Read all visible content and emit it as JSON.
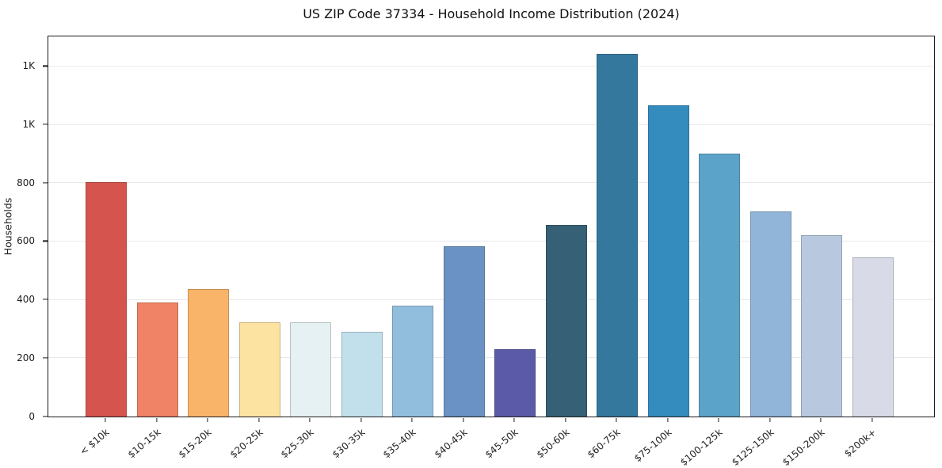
{
  "figure": {
    "title": "US ZIP Code 37334 - Household Income Distribution (2024)"
  },
  "chart_data": {
    "type": "bar",
    "title": "US ZIP Code 37334 - Household Income Distribution (2024)",
    "xlabel": "",
    "ylabel": "Households",
    "categories": [
      "< $10k",
      "$10-15k",
      "$15-20k",
      "$20-25k",
      "$25-30k",
      "$30-35k",
      "$35-40k",
      "$40-45k",
      "$45-50k",
      "$50-60k",
      "$60-75k",
      "$75-100k",
      "$100-125k",
      "$125-150k",
      "$150-200k",
      "$200k+"
    ],
    "values": [
      803,
      390,
      438,
      324,
      323,
      291,
      380,
      583,
      231,
      658,
      1243,
      1066,
      900,
      703,
      622,
      546
    ],
    "bar_colors": [
      "#d5544e",
      "#f08365",
      "#f9b469",
      "#fce3a2",
      "#e6f1f3",
      "#c1e0ec",
      "#92bedd",
      "#6b92c4",
      "#5a5aa8",
      "#356075",
      "#35789e",
      "#348bbd",
      "#5ba3c9",
      "#90b5d8",
      "#b8c9df",
      "#d8dae7"
    ],
    "ylim": [
      0,
      1300
    ],
    "yticks": [
      {
        "value": 0,
        "label": "0"
      },
      {
        "value": 200,
        "label": "200"
      },
      {
        "value": 400,
        "label": "400"
      },
      {
        "value": 600,
        "label": "600"
      },
      {
        "value": 800,
        "label": "800"
      },
      {
        "value": 1000,
        "label": "1K"
      },
      {
        "value": 1200,
        "label": "1K"
      }
    ],
    "grid": "horizontal-only",
    "legend": "none"
  }
}
